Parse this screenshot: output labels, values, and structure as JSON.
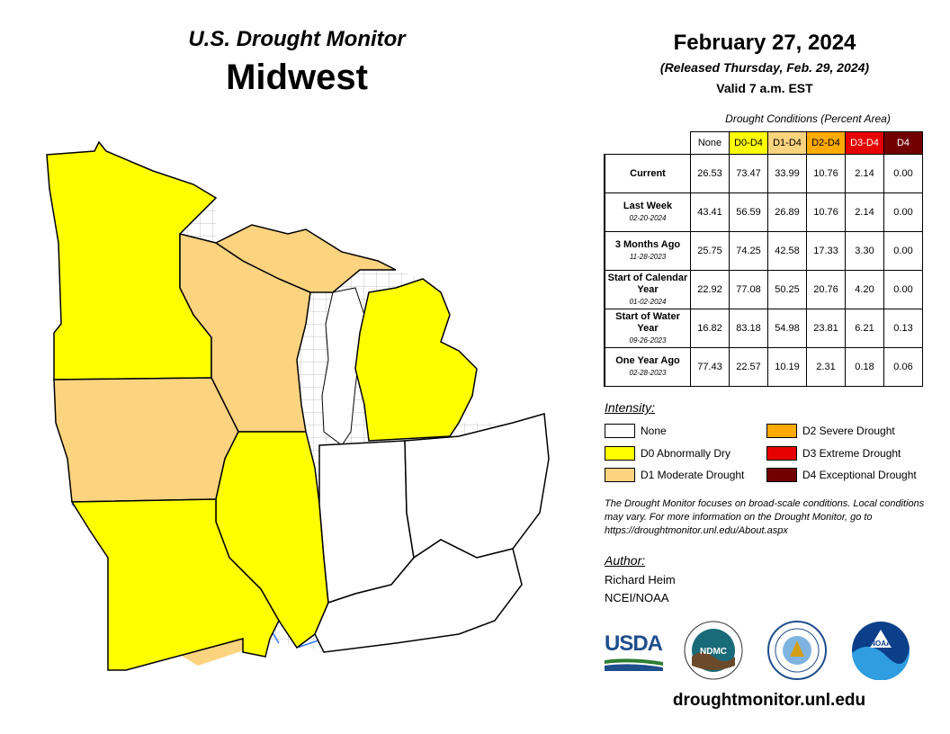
{
  "header": {
    "title": "U.S. Drought Monitor",
    "region": "Midwest",
    "date": "February 27, 2024",
    "released": "(Released Thursday, Feb. 29, 2024)",
    "valid": "Valid 7 a.m. EST"
  },
  "table": {
    "caption": "Drought Conditions (Percent Area)",
    "columns": [
      {
        "label": "None",
        "color": "#ffffff",
        "text_color": "#000000"
      },
      {
        "label": "D0-D4",
        "color": "#ffff00",
        "text_color": "#000000"
      },
      {
        "label": "D1-D4",
        "color": "#fcd37f",
        "text_color": "#000000"
      },
      {
        "label": "D2-D4",
        "color": "#ffaa00",
        "text_color": "#000000"
      },
      {
        "label": "D3-D4",
        "color": "#e60000",
        "text_color": "#ffffff"
      },
      {
        "label": "D4",
        "color": "#730000",
        "text_color": "#ffffff"
      }
    ],
    "rows": [
      {
        "label": "Current",
        "sub": "",
        "values": [
          "26.53",
          "73.47",
          "33.99",
          "10.76",
          "2.14",
          "0.00"
        ]
      },
      {
        "label": "Last Week",
        "sub": "02-20-2024",
        "values": [
          "43.41",
          "56.59",
          "26.89",
          "10.76",
          "2.14",
          "0.00"
        ]
      },
      {
        "label": "3 Months Ago",
        "sub": "11-28-2023",
        "values": [
          "25.75",
          "74.25",
          "42.58",
          "17.33",
          "3.30",
          "0.00"
        ]
      },
      {
        "label": "Start of Calendar Year",
        "sub": "01-02-2024",
        "values": [
          "22.92",
          "77.08",
          "50.25",
          "20.76",
          "4.20",
          "0.00"
        ]
      },
      {
        "label": "Start of Water Year",
        "sub": "09-26-2023",
        "values": [
          "16.82",
          "83.18",
          "54.98",
          "23.81",
          "6.21",
          "0.13"
        ]
      },
      {
        "label": "One Year Ago",
        "sub": "02-28-2023",
        "values": [
          "77.43",
          "22.57",
          "10.19",
          "2.31",
          "0.18",
          "0.06"
        ]
      }
    ]
  },
  "legend": {
    "title": "Intensity:",
    "items": [
      {
        "label": "None",
        "color": "#ffffff"
      },
      {
        "label": "D0 Abnormally Dry",
        "color": "#ffff00"
      },
      {
        "label": "D1 Moderate Drought",
        "color": "#fcd37f"
      },
      {
        "label": "D2 Severe Drought",
        "color": "#ffaa00"
      },
      {
        "label": "D3 Extreme Drought",
        "color": "#e60000"
      },
      {
        "label": "D4 Exceptional Drought",
        "color": "#730000"
      }
    ]
  },
  "note": "The Drought Monitor focuses on broad-scale conditions. Local conditions may vary. For more information on the Drought Monitor, go to https://droughtmonitor.unl.edu/About.aspx",
  "author": {
    "title": "Author:",
    "name": "Richard Heim",
    "org": "NCEI/NOAA"
  },
  "logos": {
    "usda": "USDA",
    "ndmc": "NDMC",
    "noaa": "NOAA"
  },
  "url": "droughtmonitor.unl.edu",
  "map": {
    "state_colors": {
      "minnesota": "#ffff00",
      "wisconsin": "#fcd37f",
      "michigan_upper": "#fcd37f",
      "michigan_lower": "#ffff00",
      "iowa": "#fcd37f",
      "missouri": "#ffff00",
      "illinois": "#ffff00",
      "indiana": "#ffffff",
      "ohio": "#ffffff",
      "kentucky": "#ffffff"
    }
  }
}
